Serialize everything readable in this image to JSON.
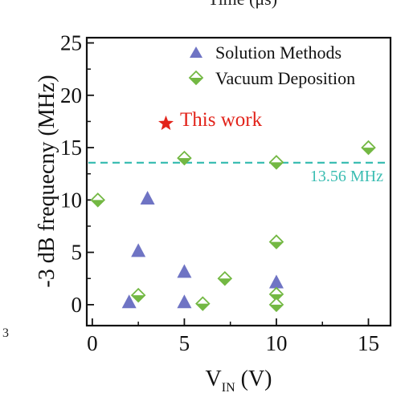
{
  "cropped_fragments": {
    "top_text": "Time (μs)",
    "left_text": "3"
  },
  "chart_data": {
    "type": "scatter",
    "xlabel_main": "V",
    "xlabel_sub": "IN",
    "xlabel_unit": " (V)",
    "ylabel": "-3 dB frequecny (MHz)",
    "xlim": [
      -0.3,
      16.2
    ],
    "ylim": [
      -2,
      25.5
    ],
    "xticks": [
      0,
      5,
      10,
      15
    ],
    "yticks": [
      0,
      5,
      10,
      15,
      20,
      25
    ],
    "series": [
      {
        "name": "Solution Methods",
        "marker": "triangle",
        "color": "#6F74C4",
        "points": [
          {
            "x": 2,
            "y": 0.2
          },
          {
            "x": 2.5,
            "y": 5.1
          },
          {
            "x": 3,
            "y": 10.1
          },
          {
            "x": 5,
            "y": 0.2
          },
          {
            "x": 5,
            "y": 3.1
          },
          {
            "x": 10,
            "y": 2.1
          }
        ]
      },
      {
        "name": "Vacuum Deposition",
        "marker": "diamond",
        "color": "#73B843",
        "points": [
          {
            "x": 0.3,
            "y": 10
          },
          {
            "x": 2.5,
            "y": 0.9
          },
          {
            "x": 5,
            "y": 14
          },
          {
            "x": 6,
            "y": 0.1
          },
          {
            "x": 7.2,
            "y": 2.5
          },
          {
            "x": 10,
            "y": 13.6
          },
          {
            "x": 10,
            "y": 6
          },
          {
            "x": 10,
            "y": 1
          },
          {
            "x": 10,
            "y": 0
          },
          {
            "x": 15,
            "y": 15
          }
        ]
      }
    ],
    "highlight": {
      "label": "This work",
      "marker": "star",
      "color": "#E2231A",
      "x": 4,
      "y": 17.3
    },
    "reference_line": {
      "y": 13.56,
      "label": "13.56 MHz",
      "color": "#3BBDB2"
    }
  }
}
